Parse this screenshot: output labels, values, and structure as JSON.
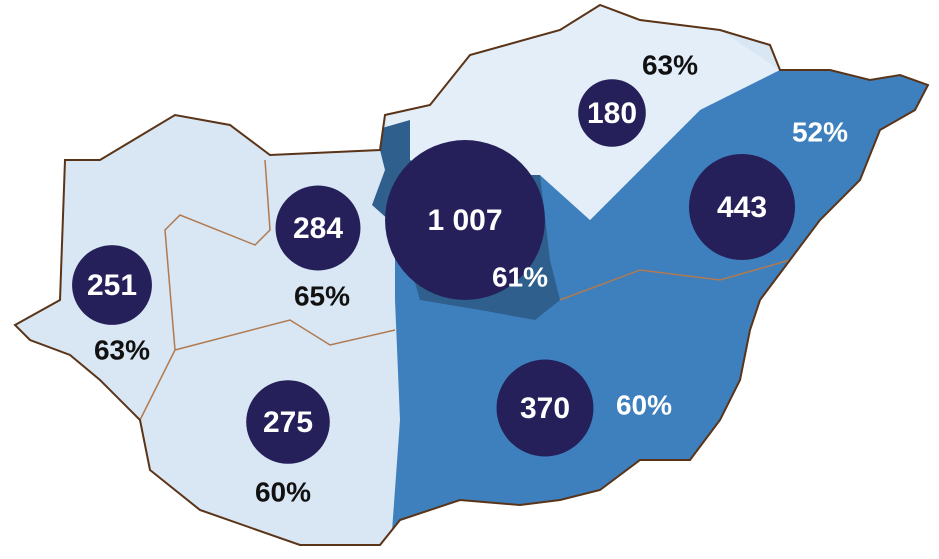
{
  "chart_data": {
    "type": "bubble-map",
    "values": [
      251,
      284,
      1007,
      180,
      443,
      370,
      275
    ],
    "value_labels": [
      "251",
      "284",
      "1 007",
      "180",
      "443",
      "370",
      "275"
    ],
    "share_values": [
      63,
      65,
      61,
      63,
      52,
      60,
      60
    ],
    "share_labels": [
      "63%",
      "65%",
      "61%",
      "63%",
      "52%",
      "60%",
      "60%"
    ],
    "color": "#25205a"
  }
}
